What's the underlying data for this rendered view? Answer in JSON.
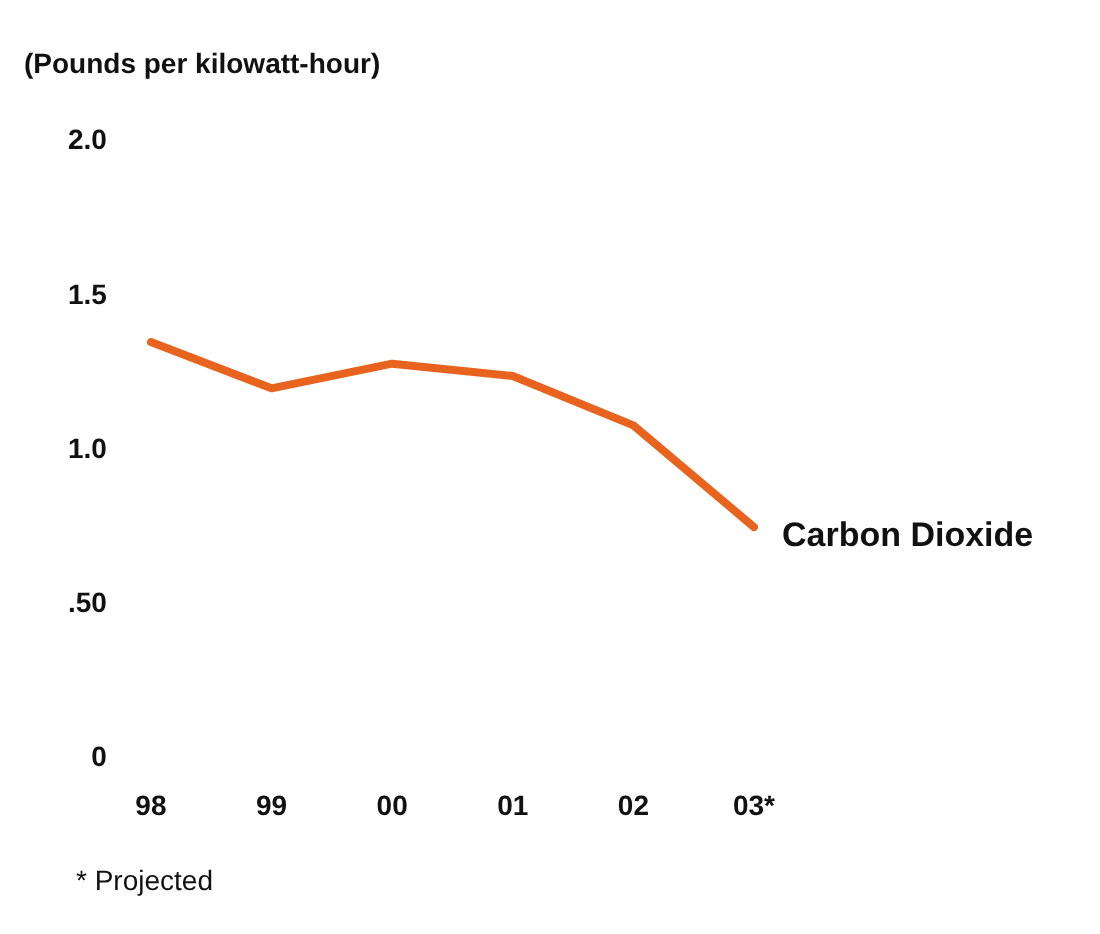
{
  "chart_data": {
    "type": "line",
    "title": "(Pounds per kilowatt-hour)",
    "categories": [
      "98",
      "99",
      "00",
      "01",
      "02",
      "03*"
    ],
    "series": [
      {
        "name": "Carbon Dioxide",
        "color": "#e8641e",
        "values": [
          1.35,
          1.2,
          1.28,
          1.24,
          1.08,
          0.75
        ]
      }
    ],
    "ylim": [
      0,
      2
    ],
    "yticks": [
      0,
      {
        "value": 0.5,
        "label": ".50"
      },
      {
        "value": 1,
        "label": "1.0"
      },
      1.5,
      {
        "value": 2,
        "label": "2.0"
      }
    ],
    "grid": false,
    "legend": false,
    "marker": "none",
    "line_style": "solid",
    "annotations": [
      "* Projected"
    ]
  }
}
